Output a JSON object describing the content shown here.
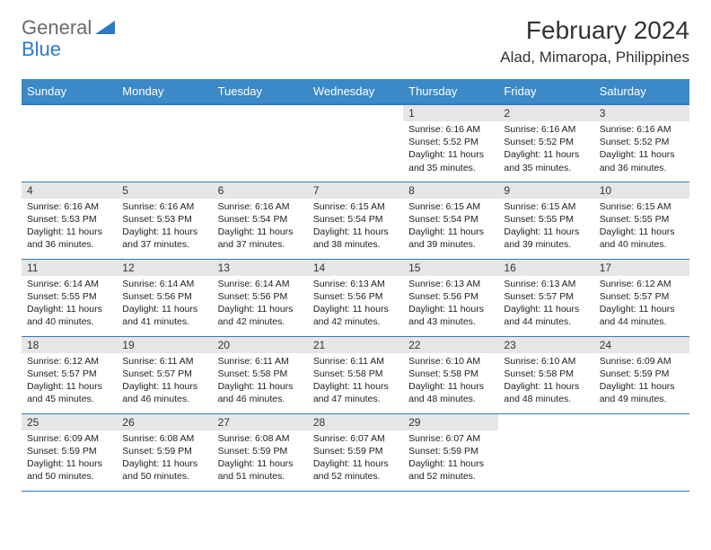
{
  "logo": {
    "general": "General",
    "blue": "Blue"
  },
  "header": {
    "month": "February 2024",
    "location": "Alad, Mimaropa, Philippines"
  },
  "colors": {
    "header_bg": "#3b89c7",
    "day_bar": "#e6e6e6",
    "border": "#2d7bc4",
    "text": "#333333"
  },
  "day_labels": [
    "Sunday",
    "Monday",
    "Tuesday",
    "Wednesday",
    "Thursday",
    "Friday",
    "Saturday"
  ],
  "weeks": [
    [
      null,
      null,
      null,
      null,
      {
        "n": "1",
        "sr": "Sunrise: 6:16 AM",
        "ss": "Sunset: 5:52 PM",
        "dl": "Daylight: 11 hours and 35 minutes."
      },
      {
        "n": "2",
        "sr": "Sunrise: 6:16 AM",
        "ss": "Sunset: 5:52 PM",
        "dl": "Daylight: 11 hours and 35 minutes."
      },
      {
        "n": "3",
        "sr": "Sunrise: 6:16 AM",
        "ss": "Sunset: 5:52 PM",
        "dl": "Daylight: 11 hours and 36 minutes."
      }
    ],
    [
      {
        "n": "4",
        "sr": "Sunrise: 6:16 AM",
        "ss": "Sunset: 5:53 PM",
        "dl": "Daylight: 11 hours and 36 minutes."
      },
      {
        "n": "5",
        "sr": "Sunrise: 6:16 AM",
        "ss": "Sunset: 5:53 PM",
        "dl": "Daylight: 11 hours and 37 minutes."
      },
      {
        "n": "6",
        "sr": "Sunrise: 6:16 AM",
        "ss": "Sunset: 5:54 PM",
        "dl": "Daylight: 11 hours and 37 minutes."
      },
      {
        "n": "7",
        "sr": "Sunrise: 6:15 AM",
        "ss": "Sunset: 5:54 PM",
        "dl": "Daylight: 11 hours and 38 minutes."
      },
      {
        "n": "8",
        "sr": "Sunrise: 6:15 AM",
        "ss": "Sunset: 5:54 PM",
        "dl": "Daylight: 11 hours and 39 minutes."
      },
      {
        "n": "9",
        "sr": "Sunrise: 6:15 AM",
        "ss": "Sunset: 5:55 PM",
        "dl": "Daylight: 11 hours and 39 minutes."
      },
      {
        "n": "10",
        "sr": "Sunrise: 6:15 AM",
        "ss": "Sunset: 5:55 PM",
        "dl": "Daylight: 11 hours and 40 minutes."
      }
    ],
    [
      {
        "n": "11",
        "sr": "Sunrise: 6:14 AM",
        "ss": "Sunset: 5:55 PM",
        "dl": "Daylight: 11 hours and 40 minutes."
      },
      {
        "n": "12",
        "sr": "Sunrise: 6:14 AM",
        "ss": "Sunset: 5:56 PM",
        "dl": "Daylight: 11 hours and 41 minutes."
      },
      {
        "n": "13",
        "sr": "Sunrise: 6:14 AM",
        "ss": "Sunset: 5:56 PM",
        "dl": "Daylight: 11 hours and 42 minutes."
      },
      {
        "n": "14",
        "sr": "Sunrise: 6:13 AM",
        "ss": "Sunset: 5:56 PM",
        "dl": "Daylight: 11 hours and 42 minutes."
      },
      {
        "n": "15",
        "sr": "Sunrise: 6:13 AM",
        "ss": "Sunset: 5:56 PM",
        "dl": "Daylight: 11 hours and 43 minutes."
      },
      {
        "n": "16",
        "sr": "Sunrise: 6:13 AM",
        "ss": "Sunset: 5:57 PM",
        "dl": "Daylight: 11 hours and 44 minutes."
      },
      {
        "n": "17",
        "sr": "Sunrise: 6:12 AM",
        "ss": "Sunset: 5:57 PM",
        "dl": "Daylight: 11 hours and 44 minutes."
      }
    ],
    [
      {
        "n": "18",
        "sr": "Sunrise: 6:12 AM",
        "ss": "Sunset: 5:57 PM",
        "dl": "Daylight: 11 hours and 45 minutes."
      },
      {
        "n": "19",
        "sr": "Sunrise: 6:11 AM",
        "ss": "Sunset: 5:57 PM",
        "dl": "Daylight: 11 hours and 46 minutes."
      },
      {
        "n": "20",
        "sr": "Sunrise: 6:11 AM",
        "ss": "Sunset: 5:58 PM",
        "dl": "Daylight: 11 hours and 46 minutes."
      },
      {
        "n": "21",
        "sr": "Sunrise: 6:11 AM",
        "ss": "Sunset: 5:58 PM",
        "dl": "Daylight: 11 hours and 47 minutes."
      },
      {
        "n": "22",
        "sr": "Sunrise: 6:10 AM",
        "ss": "Sunset: 5:58 PM",
        "dl": "Daylight: 11 hours and 48 minutes."
      },
      {
        "n": "23",
        "sr": "Sunrise: 6:10 AM",
        "ss": "Sunset: 5:58 PM",
        "dl": "Daylight: 11 hours and 48 minutes."
      },
      {
        "n": "24",
        "sr": "Sunrise: 6:09 AM",
        "ss": "Sunset: 5:59 PM",
        "dl": "Daylight: 11 hours and 49 minutes."
      }
    ],
    [
      {
        "n": "25",
        "sr": "Sunrise: 6:09 AM",
        "ss": "Sunset: 5:59 PM",
        "dl": "Daylight: 11 hours and 50 minutes."
      },
      {
        "n": "26",
        "sr": "Sunrise: 6:08 AM",
        "ss": "Sunset: 5:59 PM",
        "dl": "Daylight: 11 hours and 50 minutes."
      },
      {
        "n": "27",
        "sr": "Sunrise: 6:08 AM",
        "ss": "Sunset: 5:59 PM",
        "dl": "Daylight: 11 hours and 51 minutes."
      },
      {
        "n": "28",
        "sr": "Sunrise: 6:07 AM",
        "ss": "Sunset: 5:59 PM",
        "dl": "Daylight: 11 hours and 52 minutes."
      },
      {
        "n": "29",
        "sr": "Sunrise: 6:07 AM",
        "ss": "Sunset: 5:59 PM",
        "dl": "Daylight: 11 hours and 52 minutes."
      },
      null,
      null
    ]
  ]
}
